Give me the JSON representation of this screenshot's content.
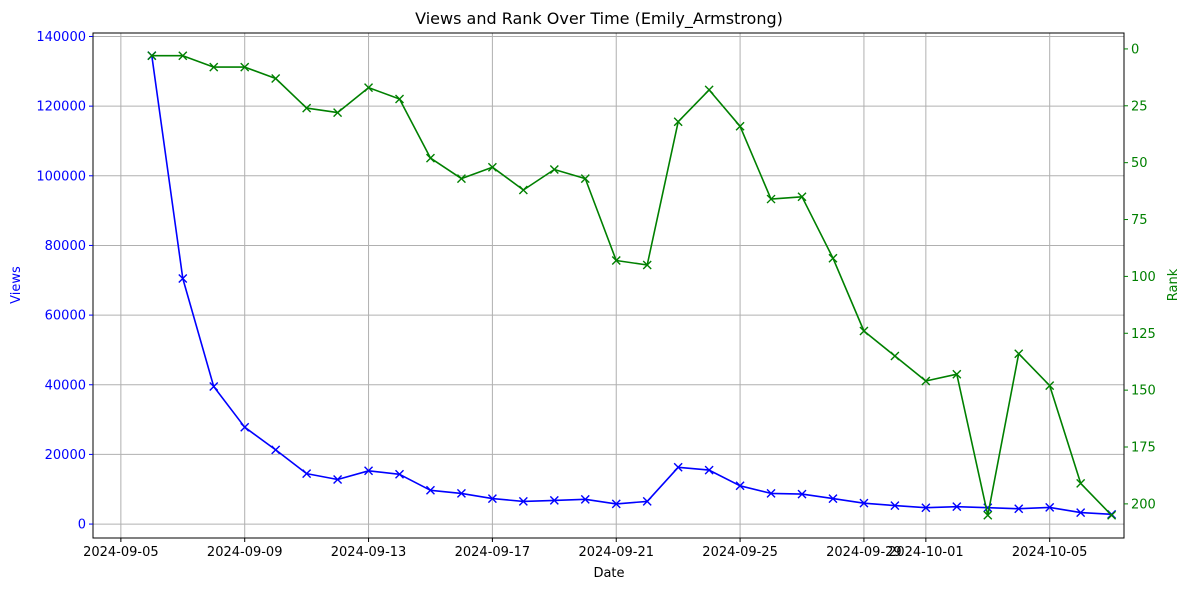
{
  "chart_data": {
    "type": "line",
    "title": "Views and Rank Over Time (Emily_Armstrong)",
    "xlabel": "Date",
    "ylabel_left": "Views",
    "ylabel_right": "Rank",
    "grid": true,
    "x_ticks": [
      "2024-09-05",
      "2024-09-09",
      "2024-09-13",
      "2024-09-17",
      "2024-09-21",
      "2024-09-25",
      "2024-09-29",
      "2024-10-01",
      "2024-10-05"
    ],
    "left_ticks": [
      "0",
      "20000",
      "40000",
      "60000",
      "80000",
      "100000",
      "120000",
      "140000"
    ],
    "right_ticks": [
      "0",
      "25",
      "50",
      "75",
      "100",
      "125",
      "150",
      "175",
      "200"
    ],
    "x": [
      "2024-09-06",
      "2024-09-07",
      "2024-09-08",
      "2024-09-09",
      "2024-09-10",
      "2024-09-11",
      "2024-09-12",
      "2024-09-13",
      "2024-09-14",
      "2024-09-15",
      "2024-09-16",
      "2024-09-17",
      "2024-09-18",
      "2024-09-19",
      "2024-09-20",
      "2024-09-21",
      "2024-09-22",
      "2024-09-23",
      "2024-09-24",
      "2024-09-25",
      "2024-09-26",
      "2024-09-27",
      "2024-09-28",
      "2024-09-29",
      "2024-09-30",
      "2024-10-01",
      "2024-10-02",
      "2024-10-03",
      "2024-10-04",
      "2024-10-05",
      "2024-10-06",
      "2024-10-07"
    ],
    "series": [
      {
        "axis": "left",
        "color": "#0000ff",
        "marker": "x",
        "values": [
          134500,
          70500,
          39500,
          27800,
          21300,
          14500,
          12800,
          15300,
          14300,
          9700,
          8800,
          7300,
          6500,
          6800,
          7100,
          5800,
          6500,
          16300,
          15500,
          11000,
          8800,
          8600,
          7300,
          6000,
          5300,
          4700,
          5000,
          4700,
          4400,
          4800,
          3300,
          2800
        ]
      },
      {
        "axis": "right",
        "color": "#008000",
        "marker": "x",
        "values": [
          3,
          3,
          8,
          8,
          13,
          26,
          28,
          17,
          22,
          48,
          57,
          52,
          62,
          53,
          57,
          93,
          95,
          32,
          18,
          34,
          66,
          65,
          92,
          124,
          135,
          146,
          143,
          205,
          134,
          148,
          191,
          205
        ]
      }
    ],
    "ylim_left": [
      -4000,
      141000
    ],
    "ylim_right": [
      -7,
      215
    ],
    "right_axis_inverted": true
  }
}
